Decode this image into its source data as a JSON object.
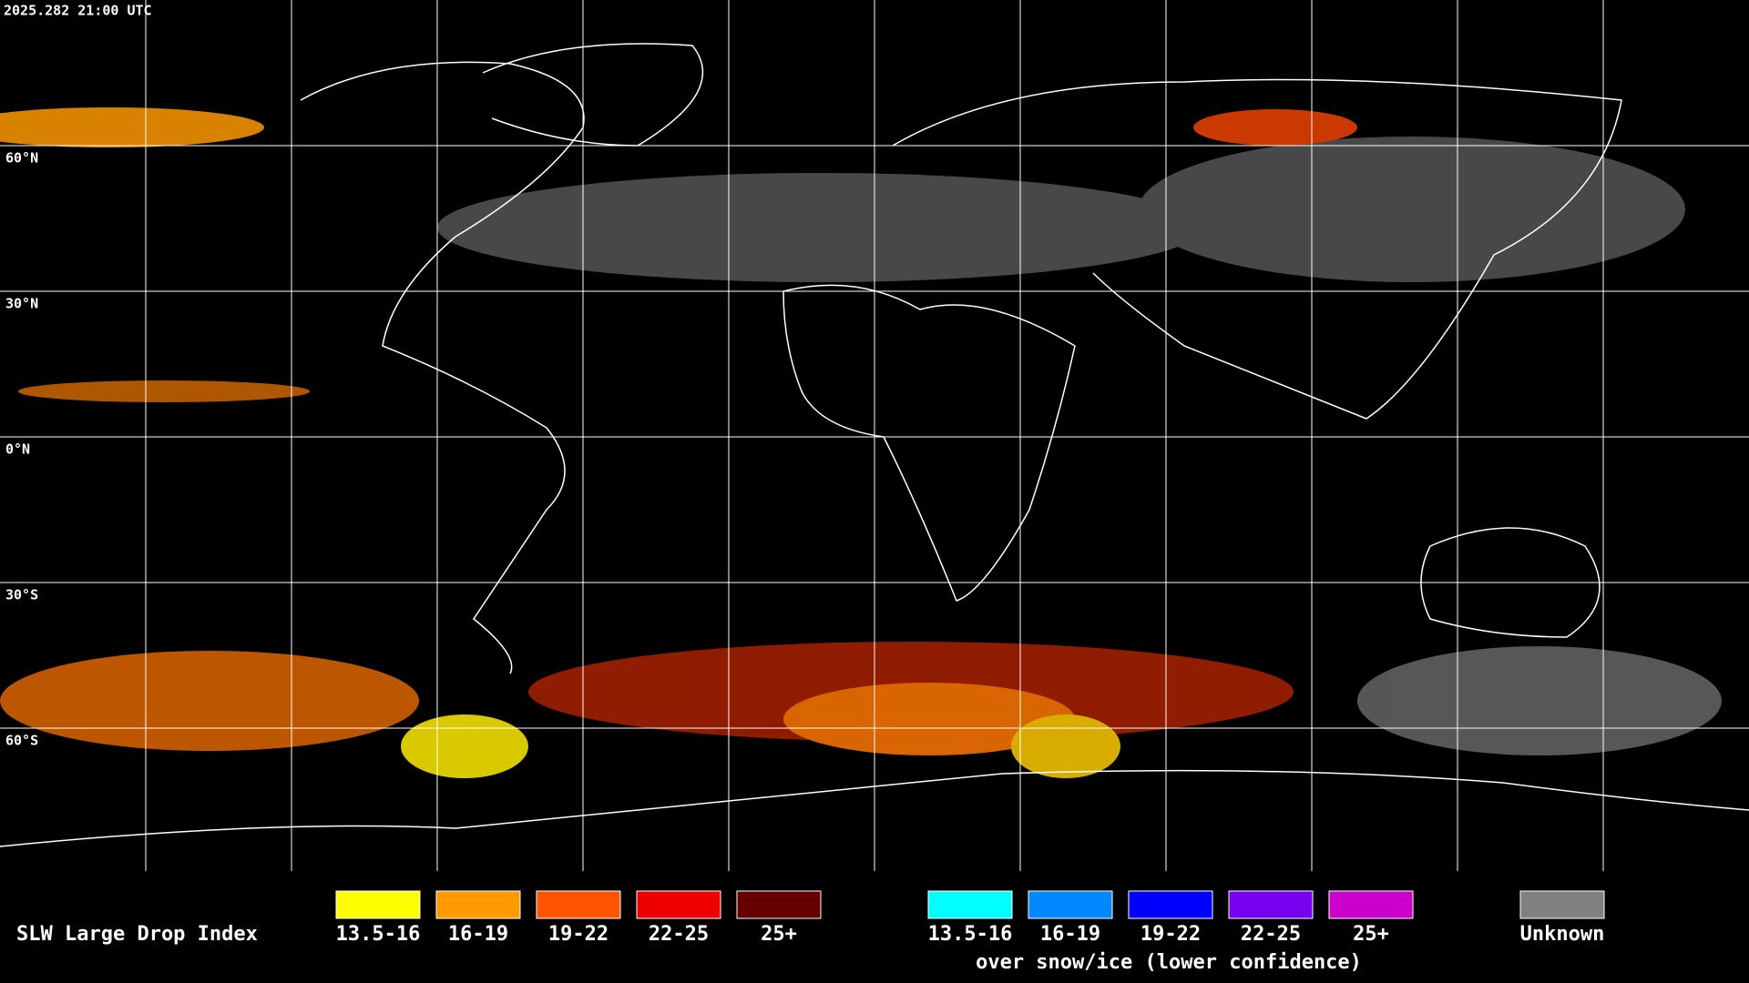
{
  "header": {
    "timestamp": "2025.282 21:00 UTC"
  },
  "map": {
    "lat_labels": [
      "60°N",
      "30°N",
      "0°N",
      "30°S",
      "60°S"
    ]
  },
  "legend": {
    "title": "SLW Large Drop Index",
    "groups": [
      {
        "items": [
          {
            "label": "13.5-16",
            "color": "#ffff00"
          },
          {
            "label": "16-19",
            "color": "#ff9900"
          },
          {
            "label": "19-22",
            "color": "#ff5500"
          },
          {
            "label": "22-25",
            "color": "#ee0000"
          },
          {
            "label": "25+",
            "color": "#660000"
          }
        ]
      },
      {
        "items": [
          {
            "label": "13.5-16",
            "color": "#00ffff"
          },
          {
            "label": "16-19",
            "color": "#0088ff"
          },
          {
            "label": "19-22",
            "color": "#0000ff"
          },
          {
            "label": "22-25",
            "color": "#7700ee"
          },
          {
            "label": "25+",
            "color": "#cc00cc"
          }
        ]
      }
    ],
    "caption": "over snow/ice (lower confidence)",
    "unknown": {
      "label": "Unknown",
      "color": "#808080"
    }
  }
}
